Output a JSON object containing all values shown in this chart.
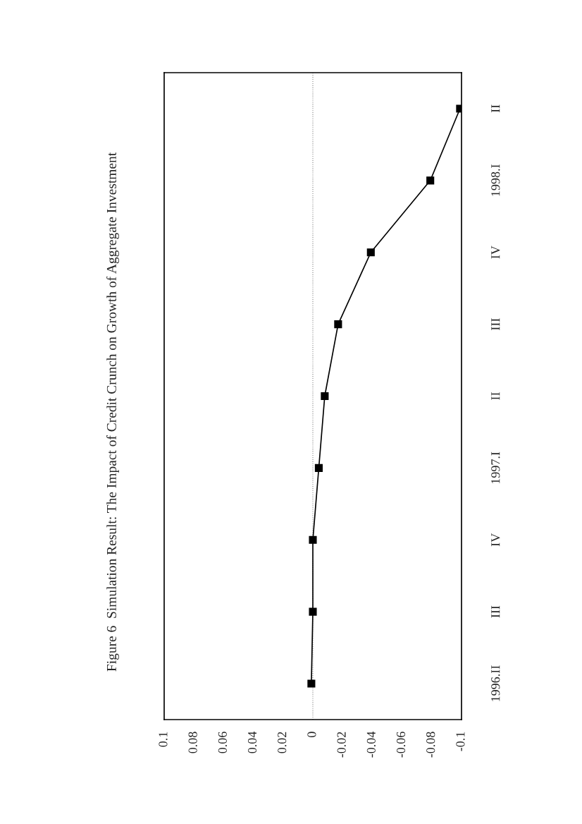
{
  "chart_data": {
    "type": "line",
    "orientation": "horizontal",
    "title": "Figure 6  Simulation Result: The Impact of Credit Crunch on Growth of Aggregate Investment",
    "categories": [
      "II",
      "1998.I",
      "IV",
      "III",
      "II",
      "1997.I",
      "IV",
      "III",
      "1996.II"
    ],
    "series": [
      {
        "color": "#000000",
        "values": [
          -0.099,
          -0.079,
          -0.039,
          -0.017,
          -0.008,
          -0.004,
          0.0,
          0.0,
          0.001
        ]
      }
    ],
    "xlim": [
      0.1,
      -0.1
    ],
    "xticks": [
      0.1,
      0.08,
      0.06,
      0.04,
      0.02,
      0,
      -0.02,
      -0.04,
      -0.06,
      -0.08,
      -0.1
    ],
    "ref_lines": [
      {
        "axis": "x",
        "value": 0,
        "color": "#888888",
        "line_style": "dotted"
      }
    ],
    "marker": "square",
    "line_style": "solid",
    "grid": false,
    "legend": false
  }
}
